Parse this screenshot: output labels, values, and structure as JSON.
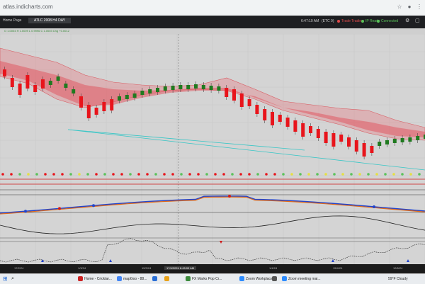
{
  "browser": {
    "url": "atlas.indicharts.com",
    "icons": [
      "star-icon",
      "profile-icon",
      "menu-icon"
    ]
  },
  "app": {
    "tabs": [
      {
        "label": "Home Page"
      },
      {
        "label": "ATLC 2008 H4 DAY"
      }
    ],
    "status": {
      "clock": "6:47:10 AM",
      "market": "(ETC 0)",
      "trading": "Trade Trading",
      "indicator": "IP Ready",
      "connection": "Connected"
    }
  },
  "ohlc": "O 1.0004 H 1.0009 L 0.9996 C 1.0003 Chg +0.0012",
  "time_axis": {
    "labels": [
      "17/2/24",
      "1/3/24",
      "15/3/24",
      "1/4/24",
      "15/4/24",
      "1/5/24",
      "12/6/24"
    ],
    "cursor": "17/4/2024 6:45:00 AM"
  },
  "taskbar": {
    "items": [
      {
        "label": "Home - Cricktar...",
        "icon_color": "#cc2222"
      },
      {
        "label": "mapGoo - 88...",
        "icon_color": "#4285f4"
      },
      {
        "label": "",
        "icon_color": "#2a6fd6"
      },
      {
        "label": "",
        "icon_color": "#e8a21a"
      },
      {
        "label": "FX Marks Pop Cr...",
        "icon_color": "#3b8a3b"
      },
      {
        "label": "Zoom Workplace",
        "icon_color": "#2d8cff"
      },
      {
        "label": "",
        "icon_color": "#555555"
      },
      {
        "label": "Zoom meeting mai...",
        "icon_color": "#2d8cff"
      }
    ],
    "weather": "59°F Cloudy"
  },
  "colors": {
    "bull": "#1f7a1f",
    "bear": "#e8141b",
    "cloud": "#e8747a",
    "cyan": "#36c6c6",
    "blue_line": "#2244cc",
    "orange_line": "#e06a1a"
  }
}
